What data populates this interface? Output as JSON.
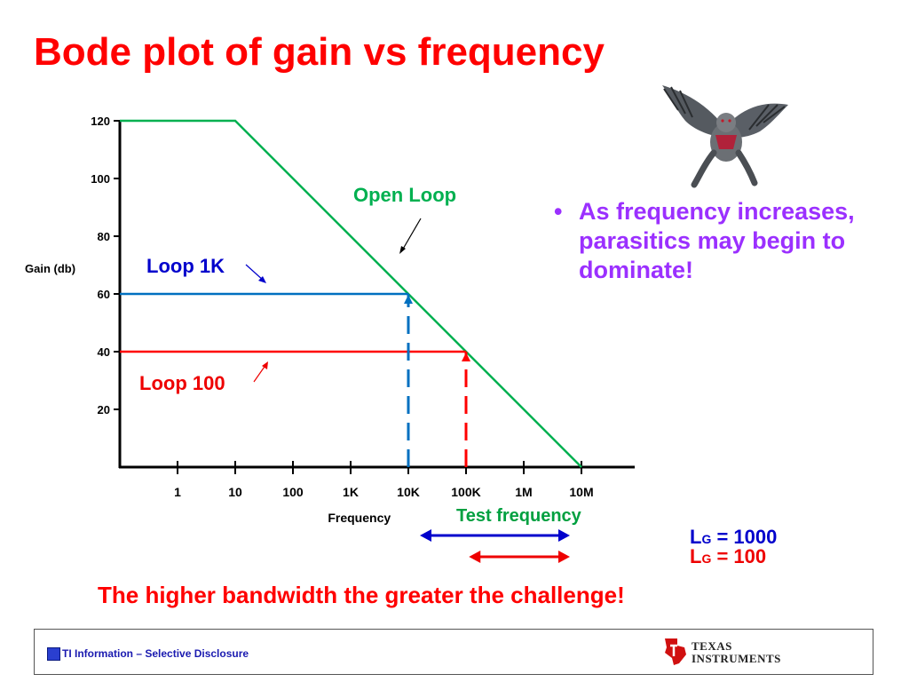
{
  "title": "Bode plot of gain vs frequency",
  "chart_data": {
    "type": "line",
    "title": "Bode plot of gain vs frequency",
    "xlabel": "Frequency",
    "ylabel": "Gain (db)",
    "x_scale": "log10",
    "x_ticks": [
      {
        "label": "1",
        "value": 0
      },
      {
        "label": "10",
        "value": 1
      },
      {
        "label": "100",
        "value": 2
      },
      {
        "label": "1K",
        "value": 3
      },
      {
        "label": "10K",
        "value": 4
      },
      {
        "label": "100K",
        "value": 5
      },
      {
        "label": "1M",
        "value": 6
      },
      {
        "label": "10M",
        "value": 7
      }
    ],
    "y_ticks": [
      20,
      40,
      60,
      80,
      100,
      120
    ],
    "xlim": [
      -1,
      8
    ],
    "ylim": [
      0,
      120
    ],
    "series": [
      {
        "name": "Open Loop",
        "color": "#00b050",
        "dash": false,
        "points": [
          [
            -1,
            120
          ],
          [
            1,
            120
          ],
          [
            7,
            0
          ]
        ]
      },
      {
        "name": "Loop 1K",
        "color": "#0070c0",
        "dash": false,
        "points": [
          [
            -1,
            60
          ],
          [
            4,
            60
          ]
        ]
      },
      {
        "name": "Loop 100",
        "color": "#ff0000",
        "dash": false,
        "points": [
          [
            -1,
            40
          ],
          [
            5,
            40
          ]
        ]
      },
      {
        "name": "Loop 1K bandwidth",
        "color": "#0070c0",
        "dash": true,
        "points": [
          [
            4,
            0
          ],
          [
            4,
            60
          ]
        ]
      },
      {
        "name": "Loop 100 bandwidth",
        "color": "#ff0000",
        "dash": true,
        "points": [
          [
            5,
            0
          ],
          [
            5,
            40
          ]
        ]
      }
    ],
    "annotations": {
      "open_loop": {
        "text": "Open Loop",
        "color": "#00b050"
      },
      "loop_1k": {
        "text": "Loop 1K",
        "color": "#0000cc"
      },
      "loop_100": {
        "text": "Loop 100",
        "color": "#ee0000"
      },
      "test_frequency": {
        "text": "Test frequency",
        "color": "#00a040"
      }
    },
    "range_arrows": [
      {
        "name": "LG 1000 test band",
        "color": "#0000cc",
        "from": 4.2,
        "to": 6.8
      },
      {
        "name": "LG 100 test band",
        "color": "#ee0000",
        "from": 5.05,
        "to": 6.8
      }
    ]
  },
  "bullet": "As frequency increases, parasitics may begin to dominate!",
  "loop_gains": [
    {
      "letter": "L",
      "sub": "G",
      "value": "= 1000",
      "color": "#0000cc"
    },
    {
      "letter": "L",
      "sub": "G",
      "value": "= 100",
      "color": "#ee0000"
    }
  ],
  "challenge": "The higher bandwidth the greater the challenge!",
  "footer": {
    "info": "TI Information – Selective Disclosure",
    "logo_line1": "TEXAS",
    "logo_line2": "INSTRUMENTS"
  }
}
